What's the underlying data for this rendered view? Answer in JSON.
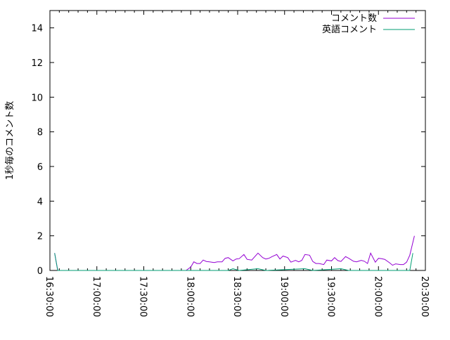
{
  "chart_data": {
    "type": "line",
    "ylabel": "1秒毎のコメント数",
    "xlabel": "",
    "ylim": [
      0,
      15
    ],
    "yticks": [
      "0",
      "2",
      "4",
      "6",
      "8",
      "10",
      "12",
      "14"
    ],
    "xlim": [
      "16:30:00",
      "20:30:00"
    ],
    "xticks": [
      "16:30:00",
      "17:00:00",
      "17:30:00",
      "18:00:00",
      "18:30:00",
      "19:00:00",
      "19:30:00",
      "20:00:00",
      "20:30:00"
    ],
    "grid": false,
    "legend_position": "top-right",
    "series": [
      {
        "name": "コメント数",
        "color": "#9400d3",
        "points": [
          [
            "16:33:00",
            1
          ],
          [
            "16:35:00",
            0
          ],
          [
            "17:57:00",
            0
          ],
          [
            "18:00:00",
            0.2
          ],
          [
            "18:02:00",
            0.5
          ],
          [
            "18:04:00",
            0.4
          ],
          [
            "18:06:00",
            0.4
          ],
          [
            "18:08:00",
            0.6
          ],
          [
            "18:10:00",
            0.52
          ],
          [
            "18:12:00",
            0.5
          ],
          [
            "18:15:00",
            0.46
          ],
          [
            "18:17:00",
            0.5
          ],
          [
            "18:20:00",
            0.5
          ],
          [
            "18:22:00",
            0.7
          ],
          [
            "18:24:00",
            0.74
          ],
          [
            "18:27:00",
            0.55
          ],
          [
            "18:29:00",
            0.66
          ],
          [
            "18:31:00",
            0.68
          ],
          [
            "18:34:00",
            0.92
          ],
          [
            "18:36:00",
            0.64
          ],
          [
            "18:39:00",
            0.6
          ],
          [
            "18:43:00",
            1.0
          ],
          [
            "18:46:00",
            0.74
          ],
          [
            "18:48:00",
            0.66
          ],
          [
            "18:50:00",
            0.7
          ],
          [
            "18:52:00",
            0.8
          ],
          [
            "18:55:00",
            0.92
          ],
          [
            "18:57:00",
            0.66
          ],
          [
            "18:59:00",
            0.83
          ],
          [
            "19:02:00",
            0.74
          ],
          [
            "19:04:00",
            0.48
          ],
          [
            "19:07:00",
            0.58
          ],
          [
            "19:09:00",
            0.5
          ],
          [
            "19:11:00",
            0.58
          ],
          [
            "19:13:00",
            0.92
          ],
          [
            "19:16:00",
            0.88
          ],
          [
            "19:18:00",
            0.52
          ],
          [
            "19:20:00",
            0.4
          ],
          [
            "19:22:00",
            0.4
          ],
          [
            "19:25:00",
            0.34
          ],
          [
            "19:27:00",
            0.6
          ],
          [
            "19:30:00",
            0.55
          ],
          [
            "19:32:00",
            0.74
          ],
          [
            "19:34:00",
            0.57
          ],
          [
            "19:36:00",
            0.52
          ],
          [
            "19:39:00",
            0.8
          ],
          [
            "19:41:00",
            0.7
          ],
          [
            "19:44:00",
            0.53
          ],
          [
            "19:46:00",
            0.5
          ],
          [
            "19:49:00",
            0.58
          ],
          [
            "19:51:00",
            0.53
          ],
          [
            "19:53:00",
            0.4
          ],
          [
            "19:55:00",
            1.0
          ],
          [
            "19:58:00",
            0.48
          ],
          [
            "20:00:00",
            0.7
          ],
          [
            "20:02:00",
            0.68
          ],
          [
            "20:04:00",
            0.64
          ],
          [
            "20:07:00",
            0.45
          ],
          [
            "20:09:00",
            0.3
          ],
          [
            "20:11:00",
            0.38
          ],
          [
            "20:14:00",
            0.34
          ],
          [
            "20:16:00",
            0.34
          ],
          [
            "20:18:00",
            0.48
          ],
          [
            "20:20:00",
            0.88
          ],
          [
            "20:23:00",
            2.0
          ]
        ]
      },
      {
        "name": "英語コメント",
        "color": "#009e73",
        "points": [
          [
            "16:33:00",
            1
          ],
          [
            "16:35:00",
            0
          ],
          [
            "17:57:00",
            0
          ],
          [
            "18:24:00",
            0
          ],
          [
            "18:27:00",
            0.1
          ],
          [
            "18:31:00",
            0
          ],
          [
            "18:43:00",
            0.1
          ],
          [
            "18:48:00",
            0
          ],
          [
            "19:13:00",
            0.1
          ],
          [
            "19:18:00",
            0
          ],
          [
            "19:36:00",
            0.1
          ],
          [
            "19:41:00",
            0
          ],
          [
            "20:20:00",
            0
          ],
          [
            "20:22:00",
            1.0
          ]
        ]
      }
    ]
  }
}
